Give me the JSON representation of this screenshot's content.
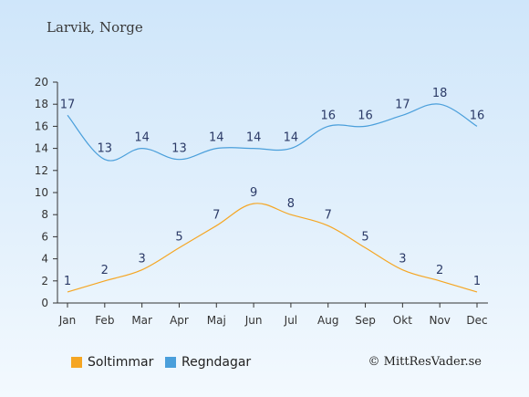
{
  "location": "Larvik, Norge",
  "credit": "© MittResVader.se",
  "colors": {
    "sun": "#f5a623",
    "rain": "#4a9fdb",
    "axis": "#333333",
    "label": "#2b3a67"
  },
  "chart_data": {
    "type": "line",
    "categories": [
      "Jan",
      "Feb",
      "Mar",
      "Apr",
      "Maj",
      "Jun",
      "Jul",
      "Aug",
      "Sep",
      "Okt",
      "Nov",
      "Dec"
    ],
    "ylim": [
      0,
      20
    ],
    "yticks": [
      0,
      2,
      4,
      6,
      8,
      10,
      12,
      14,
      16,
      18,
      20
    ],
    "grid": false,
    "legend_position": "bottom-left",
    "series": [
      {
        "name": "Soltimmar",
        "color": "#f5a623",
        "values": [
          1,
          2,
          3,
          5,
          7,
          9,
          8,
          7,
          5,
          3,
          2,
          1
        ]
      },
      {
        "name": "Regndagar",
        "color": "#4a9fdb",
        "values": [
          17,
          13,
          14,
          13,
          14,
          14,
          14,
          16,
          16,
          17,
          18,
          16
        ]
      }
    ]
  }
}
